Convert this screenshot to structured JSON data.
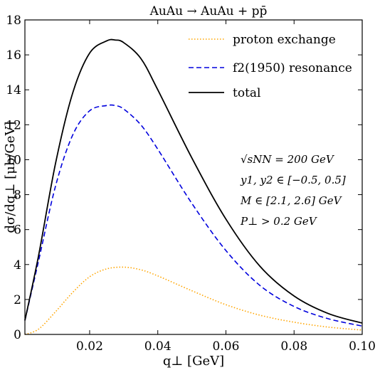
{
  "chart_data": {
    "type": "line",
    "title": "AuAu → AuAu + pp̄",
    "xlabel": "q⊥ [GeV]",
    "ylabel": "dσ/dq⊥ [μb/GeV]",
    "xlim": [
      0.001,
      0.1
    ],
    "ylim": [
      0,
      18
    ],
    "x_ticks": [
      0.02,
      0.04,
      0.06,
      0.08,
      0.1
    ],
    "x_tick_labels": [
      "0.02",
      "0.04",
      "0.06",
      "0.08",
      "0.10"
    ],
    "y_ticks": [
      0,
      2,
      4,
      6,
      8,
      10,
      12,
      14,
      16,
      18
    ],
    "y_tick_labels": [
      "0",
      "2",
      "4",
      "6",
      "8",
      "10",
      "12",
      "14",
      "16",
      "18"
    ],
    "grid": false,
    "legend_position": "top-right",
    "series": [
      {
        "name": "proton exchange",
        "color": "#ffa500",
        "style": "dotted",
        "x": [
          0.001,
          0.005,
          0.01,
          0.015,
          0.02,
          0.025,
          0.03,
          0.035,
          0.04,
          0.05,
          0.06,
          0.07,
          0.08,
          0.09,
          0.1
        ],
        "y": [
          0.0,
          0.3,
          1.3,
          2.4,
          3.3,
          3.75,
          3.85,
          3.7,
          3.35,
          2.5,
          1.7,
          1.1,
          0.7,
          0.42,
          0.25
        ]
      },
      {
        "name": "f2(1950) resonance",
        "color": "#0000dd",
        "style": "dashed",
        "x": [
          0.001,
          0.005,
          0.01,
          0.015,
          0.02,
          0.025,
          0.0275,
          0.03,
          0.035,
          0.04,
          0.05,
          0.06,
          0.07,
          0.08,
          0.09,
          0.1
        ],
        "y": [
          0.8,
          4.2,
          8.5,
          11.4,
          12.8,
          13.1,
          13.1,
          12.9,
          12.0,
          10.6,
          7.5,
          4.8,
          2.8,
          1.6,
          0.9,
          0.48
        ]
      },
      {
        "name": "total",
        "color": "#000000",
        "style": "solid",
        "x": [
          0.001,
          0.005,
          0.01,
          0.015,
          0.02,
          0.025,
          0.0275,
          0.03,
          0.035,
          0.04,
          0.05,
          0.06,
          0.07,
          0.08,
          0.09,
          0.1
        ],
        "y": [
          0.8,
          4.5,
          9.8,
          13.8,
          16.1,
          16.8,
          16.85,
          16.7,
          15.8,
          14.0,
          10.1,
          6.6,
          3.9,
          2.2,
          1.2,
          0.65
        ]
      }
    ],
    "legend_labels": [
      "proton exchange",
      "f2(1950) resonance",
      "total"
    ],
    "annotations": [
      "√sNN = 200 GeV",
      "y1, y2 ∈ [−0.5, 0.5]",
      "M ∈ [2.1, 2.6] GeV",
      "P⊥ > 0.2 GeV"
    ]
  }
}
